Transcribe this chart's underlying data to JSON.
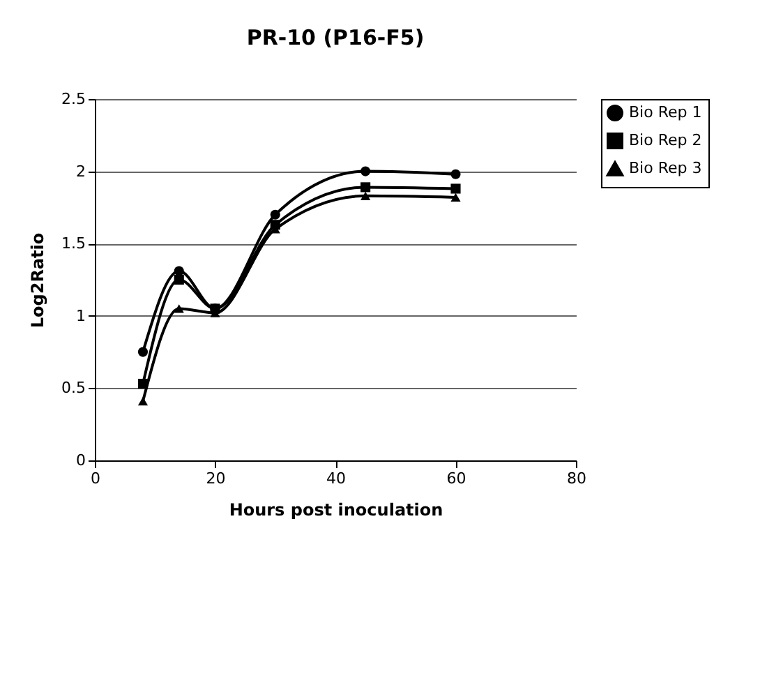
{
  "chart_data": {
    "type": "line",
    "title": "PR-10 (P16-F5)",
    "xlabel": "Hours post inoculation",
    "ylabel": "Log2Ratio",
    "x": [
      8,
      14,
      20,
      30,
      45,
      60
    ],
    "series": [
      {
        "name": "Bio Rep 1",
        "color": "#000000",
        "marker": "circle",
        "values": [
          0.75,
          1.31,
          1.05,
          1.7,
          2.0,
          1.98
        ]
      },
      {
        "name": "Bio Rep 2",
        "color": "#000000",
        "marker": "square",
        "values": [
          0.53,
          1.25,
          1.05,
          1.63,
          1.89,
          1.88
        ]
      },
      {
        "name": "Bio Rep 3",
        "color": "#000000",
        "marker": "triangle",
        "values": [
          0.41,
          1.05,
          1.02,
          1.6,
          1.83,
          1.82
        ]
      }
    ],
    "xlim": [
      0,
      80
    ],
    "xticks": [
      0,
      20,
      40,
      60,
      80
    ],
    "ylim": [
      0,
      2.5
    ],
    "yticks": [
      0,
      0.5,
      1,
      1.5,
      2,
      2.5
    ],
    "grid": "y",
    "legend": "right",
    "line_style": "solid"
  }
}
